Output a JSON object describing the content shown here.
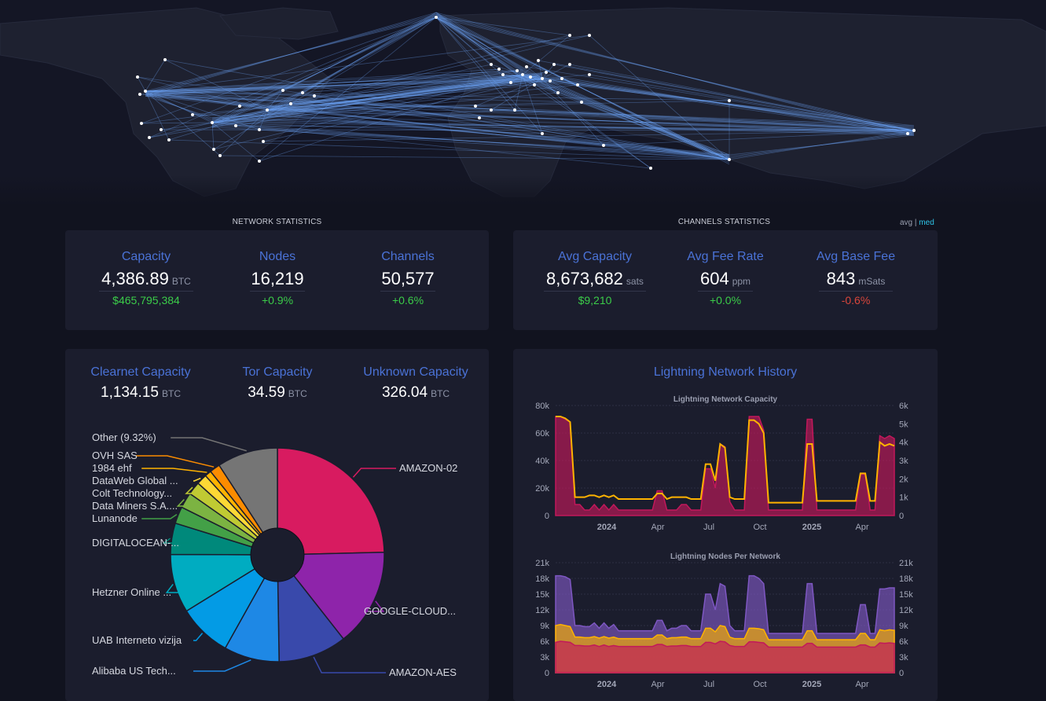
{
  "network_statistics": {
    "title": "NETWORK STATISTICS",
    "items": [
      {
        "label": "Capacity",
        "value": "4,386.89",
        "unit": "BTC",
        "change": "$465,795,384",
        "change_color": "#3bcc49"
      },
      {
        "label": "Nodes",
        "value": "16,219",
        "unit": "",
        "change": "+0.9%",
        "change_color": "#3bcc49"
      },
      {
        "label": "Channels",
        "value": "50,577",
        "unit": "",
        "change": "+0.6%",
        "change_color": "#3bcc49"
      }
    ]
  },
  "channels_statistics": {
    "title": "CHANNELS STATISTICS",
    "toggle": {
      "avg": "avg",
      "sep": "|",
      "med": "med"
    },
    "items": [
      {
        "label": "Avg Capacity",
        "value": "8,673,682",
        "unit": "sats",
        "change": "$9,210",
        "change_color": "#3bcc49"
      },
      {
        "label": "Avg Fee Rate",
        "value": "604",
        "unit": "ppm",
        "change": "+0.0%",
        "change_color": "#3bcc49"
      },
      {
        "label": "Avg Base Fee",
        "value": "843",
        "unit": "mSats",
        "change": "-0.6%",
        "change_color": "#d9463b"
      }
    ]
  },
  "capacity_by_network": [
    {
      "label": "Clearnet Capacity",
      "value": "1,134.15",
      "unit": "BTC"
    },
    {
      "label": "Tor Capacity",
      "value": "34.59",
      "unit": "BTC"
    },
    {
      "label": "Unknown Capacity",
      "value": "326.04",
      "unit": "BTC"
    }
  ],
  "history": {
    "title": "Lightning Network History"
  },
  "chart_data": [
    {
      "type": "pie",
      "categories": [
        "AMAZON-02",
        "GOOGLE-CLOUD...",
        "AMAZON-AES",
        "Alibaba US Tech...",
        "UAB Interneto vizija",
        "Hetzner Online ...",
        "DIGITALOCEAN-...",
        "Lunanode",
        "Data Miners S.A....",
        "Colt Technology...",
        "DataWeb Global ...",
        "1984 ehf",
        "OVH SAS",
        "Other (9.32%)"
      ],
      "values": [
        25.0,
        15.0,
        10.5,
        8.5,
        8.2,
        9.0,
        4.8,
        2.6,
        2.4,
        2.0,
        1.6,
        1.0,
        1.6,
        9.32
      ],
      "colors": [
        "#d81b60",
        "#8e24aa",
        "#3949ab",
        "#1e88e5",
        "#039be5",
        "#00acc1",
        "#00897b",
        "#43a047",
        "#7cb342",
        "#c0ca33",
        "#fdd835",
        "#ffb300",
        "#fb8c00",
        "#757575"
      ]
    },
    {
      "type": "area",
      "title": "Lightning Network Capacity",
      "xlabel": "",
      "ylabel": "",
      "x_ticks": [
        "2024",
        "Apr",
        "Jul",
        "Oct",
        "2025",
        "Apr"
      ],
      "y_ticks_left": [
        "0",
        "20k",
        "40k",
        "60k",
        "80k"
      ],
      "y_ticks_right": [
        "0",
        "1k",
        "2k",
        "3k",
        "4k",
        "5k",
        "6k"
      ],
      "ylim_left": [
        0,
        80000
      ],
      "ylim_right": [
        0,
        6000
      ],
      "series": [
        {
          "color": "#c2185b",
          "axis": "left",
          "values": [
            72000,
            72000,
            70000,
            68000,
            8000,
            8000,
            4000,
            4000,
            8000,
            4000,
            8000,
            4000,
            8000,
            4000,
            4000,
            4000,
            4000,
            4000,
            4000,
            4000,
            4000,
            18000,
            18000,
            4000,
            4000,
            4000,
            8000,
            8000,
            4000,
            4000,
            4000,
            34000,
            34000,
            20000,
            52000,
            50000,
            10000,
            4000,
            4000,
            4000,
            72000,
            72000,
            72000,
            62000,
            4000,
            4000,
            4000,
            4000,
            4000,
            4000,
            4000,
            4000,
            70000,
            70000,
            4000,
            4000,
            4000,
            4000,
            4000,
            4000,
            4000,
            4000,
            4000,
            30000,
            30000,
            4000,
            4000,
            58000,
            56000,
            58000,
            56000
          ]
        },
        {
          "color": "#ffb300",
          "axis": "right",
          "values": [
            5400,
            5400,
            5300,
            5100,
            1000,
            1000,
            1000,
            1100,
            1100,
            1000,
            1100,
            1000,
            1100,
            900,
            900,
            900,
            900,
            900,
            900,
            900,
            900,
            1200,
            1200,
            900,
            1000,
            1000,
            1000,
            1000,
            900,
            900,
            900,
            2800,
            2800,
            1900,
            3900,
            3700,
            1000,
            900,
            900,
            900,
            5200,
            5200,
            5000,
            4500,
            700,
            700,
            700,
            700,
            700,
            700,
            700,
            700,
            3900,
            3900,
            800,
            800,
            800,
            800,
            800,
            800,
            800,
            800,
            800,
            2300,
            2300,
            800,
            800,
            4000,
            3800,
            3900,
            3800
          ]
        }
      ]
    },
    {
      "type": "area",
      "title": "Lightning Nodes Per Network",
      "xlabel": "",
      "ylabel": "",
      "x_ticks": [
        "2024",
        "Apr",
        "Jul",
        "Oct",
        "2025",
        "Apr"
      ],
      "y_ticks_left": [
        "0",
        "3k",
        "6k",
        "9k",
        "12k",
        "15k",
        "18k",
        "21k"
      ],
      "y_ticks_right": [
        "0",
        "3k",
        "6k",
        "9k",
        "12k",
        "15k",
        "18k",
        "21k"
      ],
      "ylim_left": [
        0,
        21000
      ],
      "ylim_right": [
        0,
        21000
      ],
      "series": [
        {
          "color": "#7e57c2",
          "values": [
            18500,
            18500,
            18300,
            17800,
            9000,
            9000,
            8800,
            8800,
            9500,
            8500,
            9500,
            8500,
            9200,
            8000,
            8000,
            8000,
            8000,
            8000,
            8000,
            8000,
            8000,
            10000,
            10000,
            8000,
            8500,
            8500,
            9000,
            9000,
            8000,
            8000,
            8000,
            15000,
            15000,
            12000,
            17000,
            16500,
            9000,
            8000,
            8000,
            8000,
            18500,
            18500,
            18000,
            17000,
            7500,
            7500,
            7500,
            7500,
            7500,
            7500,
            7500,
            7500,
            17000,
            17000,
            7500,
            7500,
            7500,
            7500,
            7500,
            7500,
            7500,
            7500,
            7500,
            13000,
            13000,
            7500,
            7500,
            16000,
            16000,
            16200,
            16200
          ]
        },
        {
          "color": "#ffb300",
          "values": [
            9000,
            9200,
            9000,
            8800,
            6800,
            6800,
            6700,
            6700,
            6900,
            6600,
            6900,
            6600,
            6800,
            6500,
            6500,
            6500,
            6500,
            6500,
            6500,
            6500,
            6500,
            7200,
            7200,
            6500,
            6700,
            6700,
            6800,
            6800,
            6500,
            6500,
            6500,
            8500,
            8500,
            7800,
            9000,
            8800,
            6800,
            6500,
            6500,
            6500,
            8500,
            8500,
            8400,
            8200,
            6300,
            6300,
            6300,
            6300,
            6300,
            6300,
            6300,
            6300,
            8000,
            8000,
            6300,
            6300,
            6300,
            6300,
            6300,
            6300,
            6300,
            6300,
            6300,
            7500,
            7500,
            6300,
            6300,
            8200,
            8000,
            8200,
            8100
          ]
        },
        {
          "color": "#c2185b",
          "values": [
            5800,
            6000,
            5900,
            5800,
            5200,
            5200,
            5100,
            5100,
            5300,
            5000,
            5300,
            5000,
            5200,
            5000,
            5000,
            5000,
            5000,
            5000,
            5000,
            5000,
            5000,
            5400,
            5400,
            5000,
            5100,
            5100,
            5200,
            5200,
            5000,
            5000,
            5000,
            5800,
            5800,
            5500,
            6000,
            5900,
            5200,
            5000,
            5000,
            5000,
            5900,
            5900,
            5800,
            5700,
            4900,
            4900,
            4900,
            4900,
            4900,
            4900,
            4900,
            4900,
            5600,
            5600,
            4900,
            4900,
            4900,
            4900,
            4900,
            4900,
            4900,
            4900,
            4900,
            5300,
            5300,
            4900,
            4900,
            5700,
            5600,
            5700,
            5600
          ]
        }
      ]
    }
  ]
}
